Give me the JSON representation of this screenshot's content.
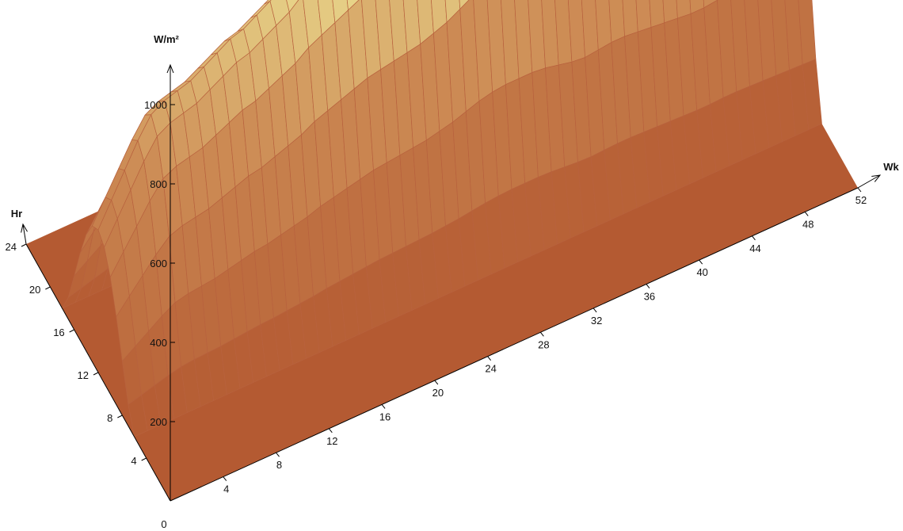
{
  "chart_data": {
    "type": "surface3d",
    "title": "",
    "axes": {
      "x": {
        "label": "Wk",
        "range": [
          0,
          52
        ],
        "ticks": [
          4,
          8,
          12,
          16,
          20,
          24,
          28,
          32,
          36,
          40,
          44,
          48,
          52
        ]
      },
      "y": {
        "label": "Hr",
        "range": [
          0,
          24
        ],
        "ticks": [
          4,
          8,
          12,
          16,
          20,
          24
        ]
      },
      "z": {
        "label": "W/m²",
        "range": [
          0,
          1100
        ],
        "ticks": [
          200,
          400,
          600,
          800,
          1000
        ]
      }
    },
    "origin_label": "0",
    "weekly_peak_irradiance": [
      360,
      420,
      480,
      540,
      590,
      610,
      620,
      630,
      650,
      670,
      690,
      700,
      720,
      740,
      760,
      790,
      810,
      830,
      850,
      870,
      880,
      890,
      900,
      910,
      930,
      950,
      980,
      1010,
      1030,
      1040,
      1040,
      1040,
      1030,
      1010,
      990,
      980,
      990,
      1000,
      1000,
      990,
      980,
      970,
      960,
      950,
      950,
      960,
      960,
      950,
      940,
      930,
      920,
      910,
      900
    ],
    "daylight_hours": {
      "start": 6,
      "end": 18
    },
    "colors": {
      "low": "#b45a32",
      "mid": "#e8d58a",
      "high": "#7fd07a",
      "grid": "#b8623e"
    }
  }
}
